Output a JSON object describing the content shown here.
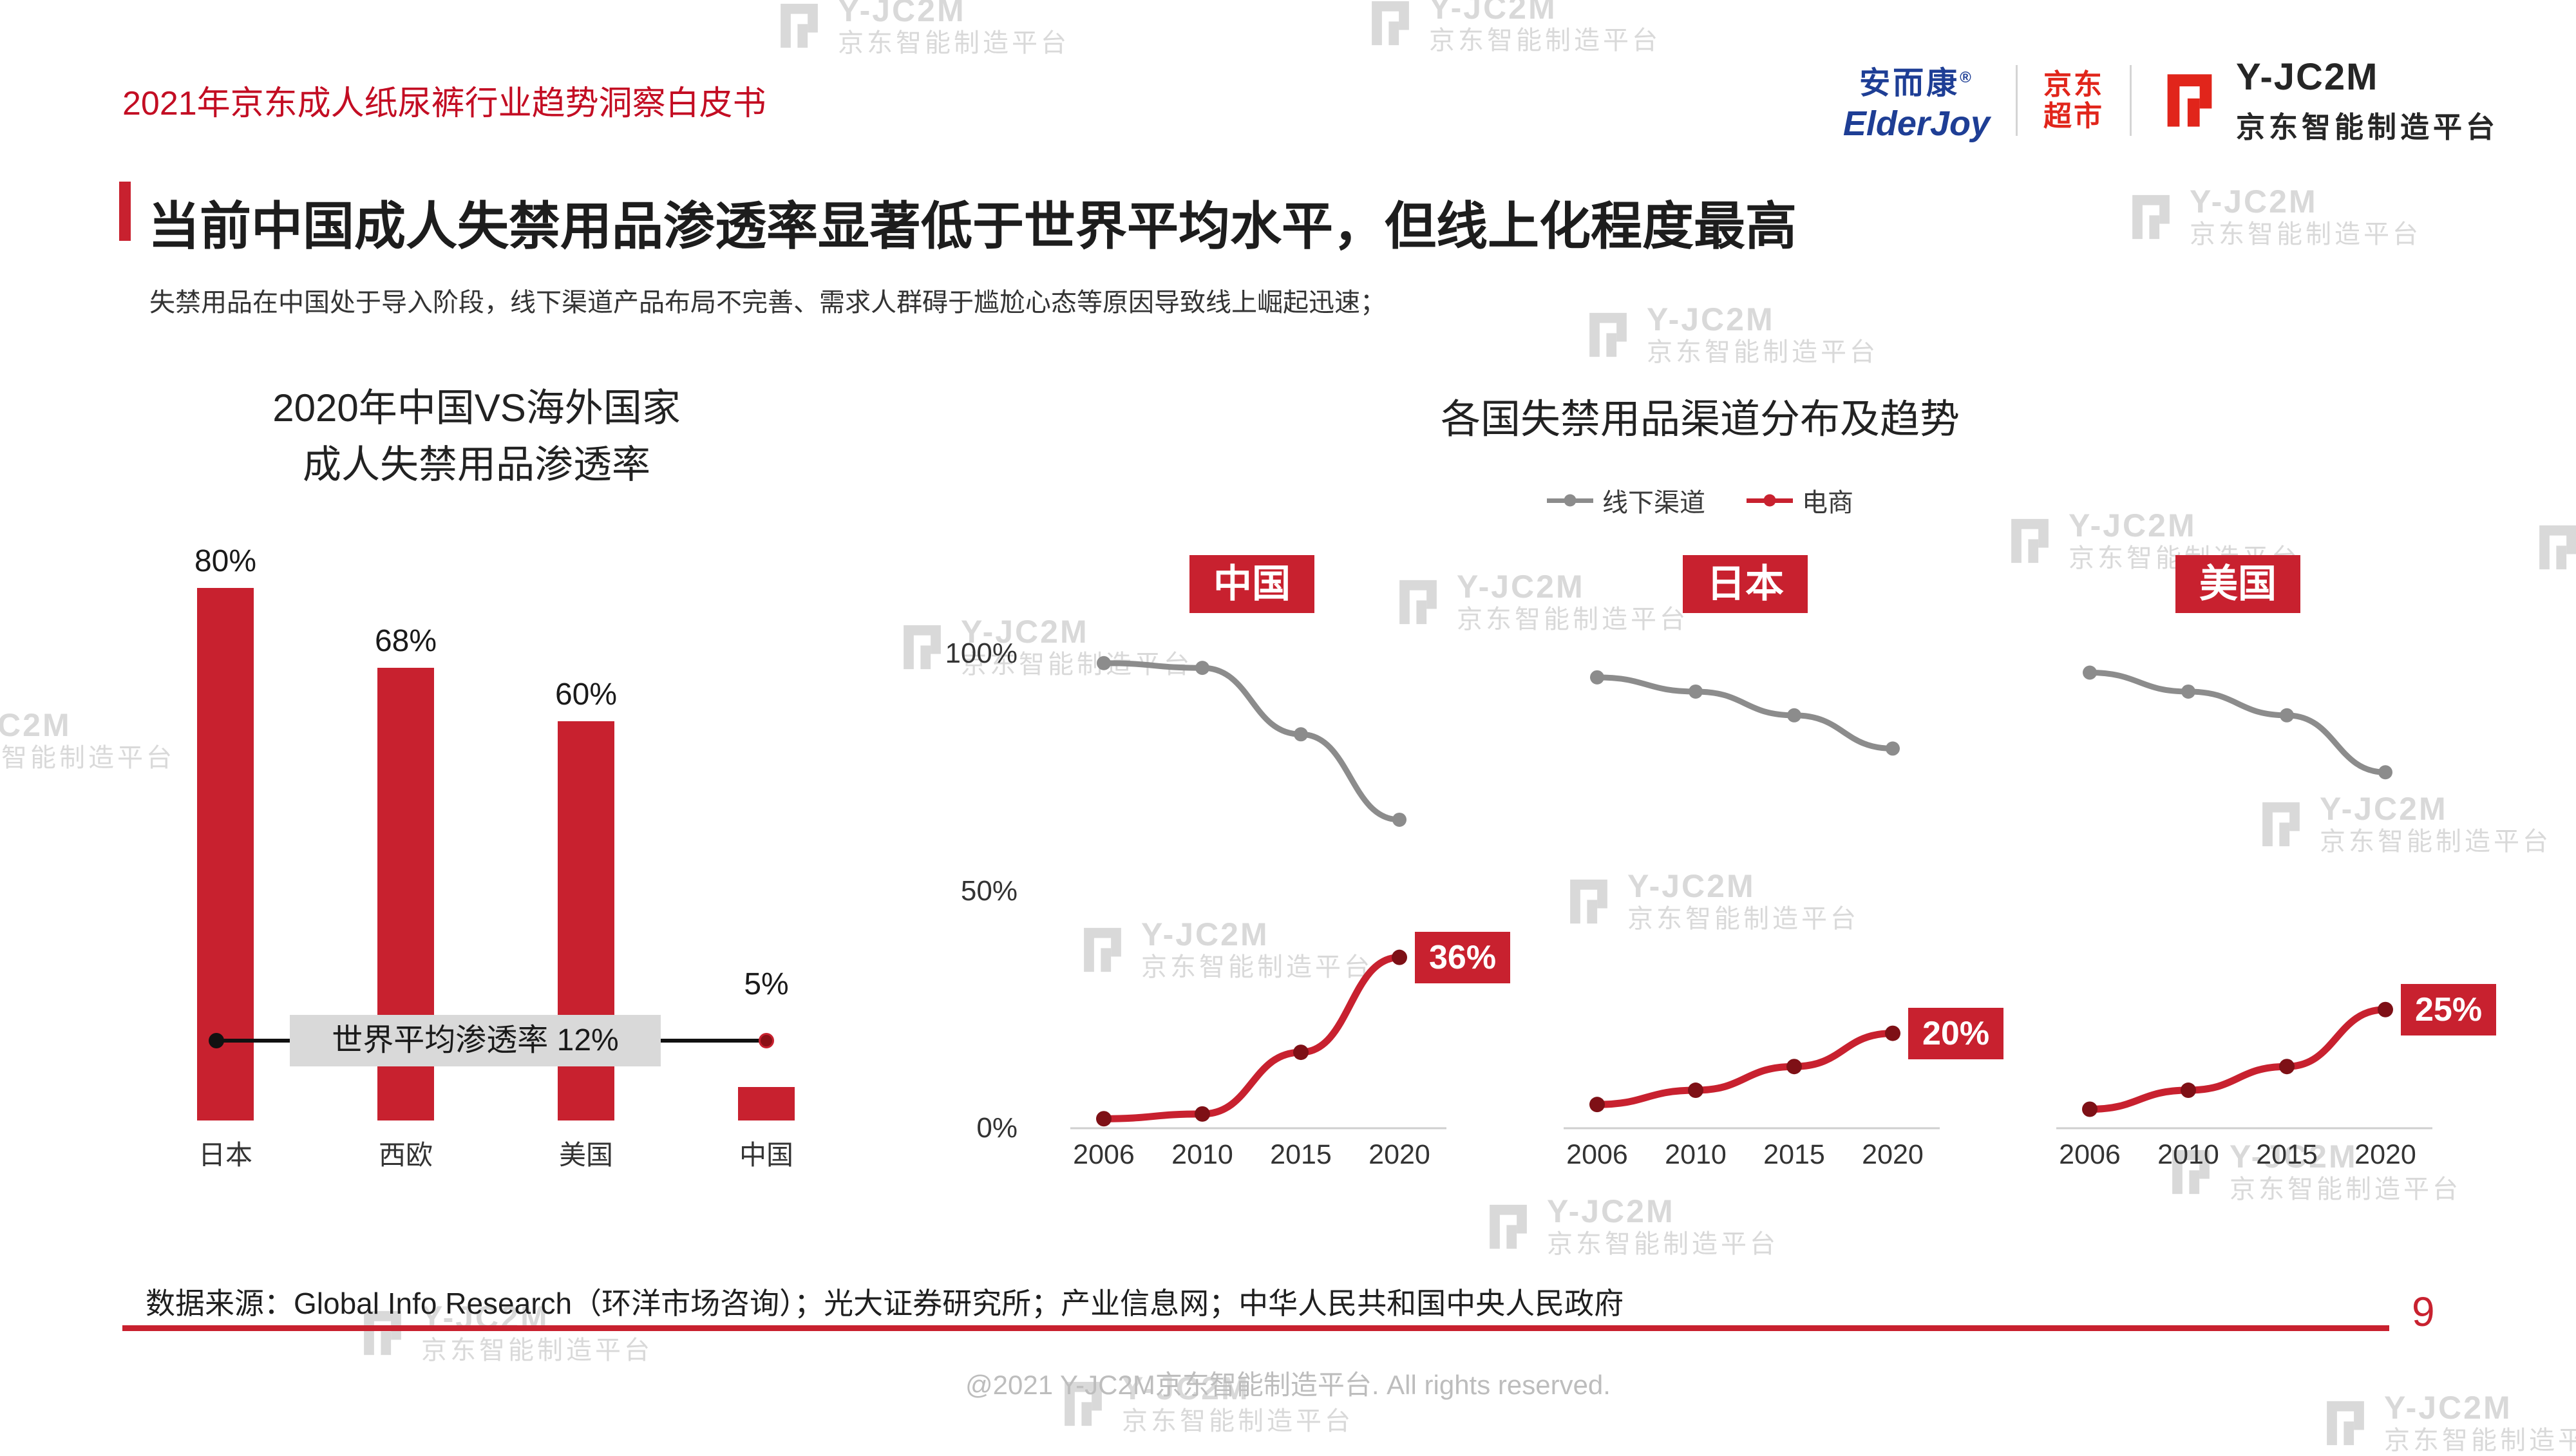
{
  "header": {
    "doc_title": "2021年京东成人纸尿裤行业趋势洞察白皮书",
    "logos": {
      "elderjoy_cn": "安而康",
      "elderjoy_reg": "®",
      "elderjoy_en": "ElderJoy",
      "jd_market_line1": "京东",
      "jd_market_line2": "超市",
      "yjc2m_name": "Y-JC2M",
      "yjc2m_sub": "京东智能制造平台"
    }
  },
  "title": {
    "text": "当前中国成人失禁用品渗透率显著低于世界平均水平，但线上化程度最高"
  },
  "subtitle": "失禁用品在中国处于导入阶段，线下渠道产品布局不完善、需求人群碍于尴尬心态等原因导致线上崛起迅速；",
  "footer": {
    "source": "数据来源：Global Info Research（环洋市场咨询）；光大证券研究所；产业信息网；中华人民共和国中央人民政府",
    "page_number": "9",
    "copyright": "@2021 Y-JC2M京东智能制造平台. All rights reserved."
  },
  "watermark": {
    "brand": "Y-JC2M",
    "sub": "京东智能制造平台"
  },
  "colors": {
    "accent_red": "#C8212F",
    "jd_red": "#E1251B",
    "header_red": "#C30D23",
    "gray_line": "#8C8C8C",
    "elderjoy_blue": "#1E3E95"
  },
  "chart_data": [
    {
      "type": "bar",
      "title_line1": "2020年中国VS海外国家",
      "title_line2": "成人失禁用品渗透率",
      "categories": [
        "日本",
        "西欧",
        "美国",
        "中国"
      ],
      "values": [
        80,
        68,
        60,
        5
      ],
      "value_labels": [
        "80%",
        "68%",
        "60%",
        "5%"
      ],
      "ylim": [
        0,
        100
      ],
      "bar_color": "#C8212F",
      "annotation": {
        "label": "世界平均渗透率 12%",
        "value": 12
      }
    },
    {
      "type": "line",
      "title": "各国失禁用品渠道分布及趋势",
      "legend": [
        {
          "name": "线下渠道",
          "color": "#8C8C8C"
        },
        {
          "name": "电商",
          "color": "#C8212F"
        }
      ],
      "x": [
        2006,
        2010,
        2015,
        2020
      ],
      "yticks": [
        "100%",
        "50%",
        "0%"
      ],
      "ylim": [
        0,
        100
      ],
      "panels": [
        {
          "name": "中国",
          "offline": [
            98,
            97,
            83,
            65
          ],
          "ecommerce": [
            2,
            3,
            16,
            36
          ],
          "end_label": "36%"
        },
        {
          "name": "日本",
          "offline": [
            95,
            92,
            87,
            80
          ],
          "ecommerce": [
            5,
            8,
            13,
            20
          ],
          "end_label": "20%"
        },
        {
          "name": "美国",
          "offline": [
            96,
            92,
            87,
            75
          ],
          "ecommerce": [
            4,
            8,
            13,
            25
          ],
          "end_label": "25%"
        }
      ]
    }
  ]
}
